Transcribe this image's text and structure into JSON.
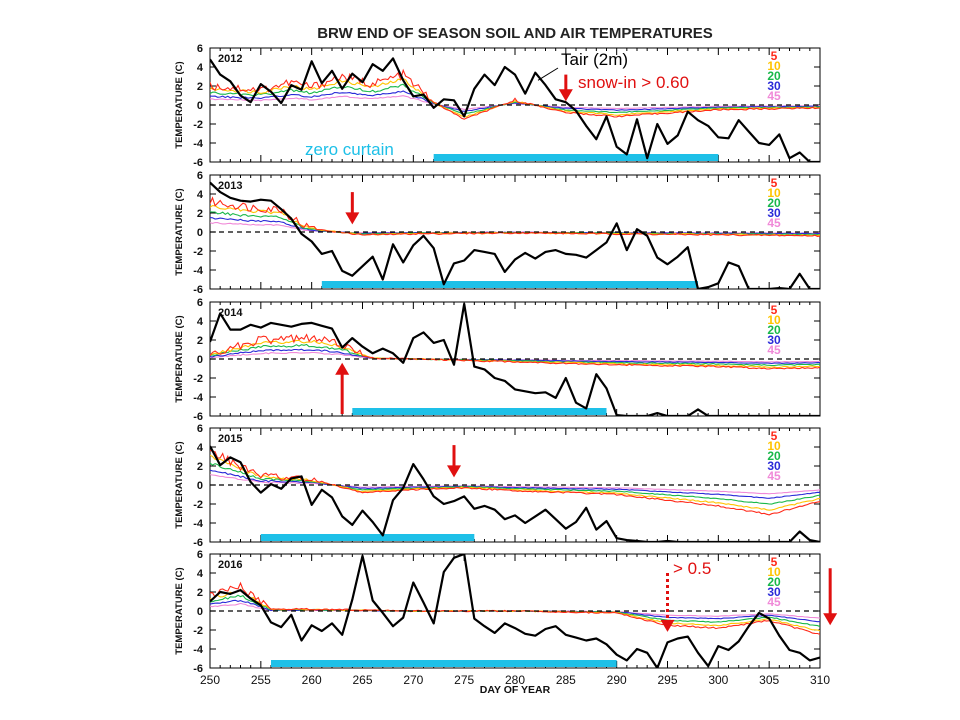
{
  "chart_data": {
    "type": "line",
    "title": "BRW END OF SEASON SOIL AND AIR TEMPERATURES",
    "xlabel": "DAY OF YEAR",
    "ylabel": "TEMPERATURE (C)",
    "xlim": [
      250,
      310
    ],
    "ylim": [
      -6,
      6
    ],
    "x_ticks": [
      250,
      255,
      260,
      265,
      270,
      275,
      280,
      285,
      290,
      295,
      300,
      305,
      310
    ],
    "y_ticks": [
      -6,
      -4,
      -2,
      0,
      2,
      4,
      6
    ],
    "grid": false,
    "legend_position": "top-right (inside each panel)",
    "depth_legend": [
      {
        "label": "5",
        "color": "#ff2a1a"
      },
      {
        "label": "10",
        "color": "#ffc400"
      },
      {
        "label": "20",
        "color": "#19b84a"
      },
      {
        "label": "30",
        "color": "#2a2ad8"
      },
      {
        "label": "45",
        "color": "#f08ad8"
      }
    ],
    "colors": {
      "air": "#000000",
      "zero_curtain": "#1ec0e8",
      "arrow": "#e01010",
      "dashed_zero": "#000000"
    },
    "annotations": {
      "tair_label": "Tair (2m)",
      "snow_in_label": "snow-in > 0.60",
      "zero_curtain_label": "zero curtain",
      "snow_in_2016_label": "> 0.5"
    },
    "panels": [
      {
        "year": "2012",
        "zero_curtain": [
          272,
          300
        ],
        "snow_in_arrows": [
          {
            "day": 285,
            "direction": "down",
            "style": "solid"
          }
        ],
        "air_temperature": {
          "x": [
            250,
            251,
            252,
            253,
            254,
            255,
            256,
            257,
            258,
            259,
            260,
            261,
            262,
            263,
            264,
            265,
            266,
            267,
            268,
            269,
            270,
            271,
            272,
            273,
            274,
            275,
            276,
            277,
            278,
            279,
            280,
            281,
            282,
            283,
            284,
            285,
            286,
            287,
            288,
            289,
            290,
            291,
            292,
            293,
            294,
            295,
            296,
            297,
            298,
            299,
            300,
            301,
            302,
            303,
            304,
            305,
            306,
            307,
            308,
            309,
            310
          ],
          "y": [
            4.8,
            3.2,
            2.5,
            1.0,
            0.3,
            2.2,
            1.4,
            0.2,
            2.1,
            1.6,
            4.6,
            2.3,
            3.6,
            1.7,
            3.3,
            2.4,
            4.3,
            3.6,
            4.9,
            2.6,
            0.9,
            1.1,
            -0.3,
            0.6,
            0.5,
            -1.2,
            1.7,
            3.2,
            2.1,
            4.0,
            3.2,
            1.2,
            3.4,
            2.1,
            0.6,
            0.3,
            -0.6,
            -2.2,
            -3.6,
            -1.2,
            -4.4,
            -5.2,
            -1.5,
            -5.6,
            -2.0,
            -4.1,
            -3.2,
            -0.7,
            -1.6,
            -2.2,
            -3.4,
            -3.5,
            -1.6,
            -2.8,
            -4.0,
            -4.2,
            -3.1,
            -5.6,
            -5.0,
            -6.0,
            -6.0
          ]
        },
        "soil_temperature_5cm": {
          "x": [
            250,
            255,
            258,
            260,
            263,
            266,
            269,
            272,
            275,
            280,
            285,
            290,
            300,
            310
          ],
          "y": [
            2.0,
            1.6,
            2.4,
            1.9,
            3.0,
            2.2,
            3.2,
            0.3,
            -1.5,
            0.5,
            -0.8,
            -1.2,
            -0.5,
            -0.3
          ]
        }
      },
      {
        "year": "2013",
        "zero_curtain": [
          261,
          298
        ],
        "snow_in_arrows": [
          {
            "day": 264,
            "direction": "down",
            "style": "solid"
          }
        ],
        "air_temperature": {
          "x": [
            250,
            251,
            252,
            253,
            254,
            255,
            256,
            257,
            258,
            259,
            260,
            261,
            262,
            263,
            264,
            265,
            266,
            267,
            268,
            269,
            270,
            271,
            272,
            273,
            274,
            275,
            276,
            277,
            278,
            279,
            280,
            281,
            282,
            283,
            284,
            285,
            286,
            287,
            288,
            289,
            290,
            291,
            292,
            293,
            294,
            295,
            296,
            297,
            298,
            299,
            300,
            301,
            302,
            303,
            304,
            305,
            306,
            307,
            308,
            309,
            310
          ],
          "y": [
            5.2,
            4.2,
            3.6,
            3.3,
            3.2,
            3.4,
            3.3,
            2.4,
            1.4,
            -0.2,
            -1.0,
            -2.3,
            -2.0,
            -4.1,
            -4.6,
            -3.6,
            -2.6,
            -5.0,
            -1.3,
            -3.2,
            -1.4,
            -0.4,
            -1.7,
            -5.5,
            -3.3,
            -3.0,
            -1.9,
            -2.1,
            -2.3,
            -4.2,
            -2.9,
            -2.2,
            -2.8,
            -2.1,
            -1.9,
            -2.3,
            -2.4,
            -2.7,
            -1.9,
            -1.1,
            0.9,
            -1.9,
            0.3,
            -0.4,
            -2.7,
            -3.4,
            -2.6,
            -1.6,
            -6.2,
            -5.8,
            -5.4,
            -3.2,
            -3.6,
            -6.0,
            -6.2,
            -6.3,
            -5.9,
            -6.1,
            -4.4,
            -6.0,
            -6.2
          ]
        },
        "soil_temperature_5cm": {
          "x": [
            250,
            254,
            257,
            259,
            261,
            265,
            270,
            280,
            290,
            300,
            310
          ],
          "y": [
            3.2,
            2.6,
            2.4,
            0.8,
            0.2,
            -0.3,
            -0.2,
            -0.1,
            -0.2,
            -0.3,
            -0.4
          ]
        }
      },
      {
        "year": "2014",
        "zero_curtain": [
          264,
          289
        ],
        "snow_in_arrows": [
          {
            "day": 263,
            "direction": "up",
            "style": "solid"
          }
        ],
        "air_temperature": {
          "x": [
            250,
            251,
            252,
            253,
            254,
            255,
            256,
            257,
            258,
            259,
            260,
            261,
            262,
            263,
            264,
            265,
            266,
            267,
            268,
            269,
            270,
            271,
            272,
            273,
            274,
            275,
            276,
            277,
            278,
            279,
            280,
            281,
            282,
            283,
            284,
            285,
            286,
            287,
            288,
            289,
            290,
            291,
            292,
            293,
            294,
            295,
            296,
            297,
            298,
            299,
            300,
            301,
            302,
            303,
            304,
            305,
            306,
            307,
            308,
            309,
            310
          ],
          "y": [
            1.8,
            4.8,
            3.1,
            3.1,
            3.6,
            3.3,
            3.8,
            3.6,
            3.4,
            3.7,
            3.8,
            3.5,
            3.2,
            1.2,
            2.2,
            1.3,
            0.6,
            1.1,
            0.6,
            -0.4,
            2.2,
            2.8,
            1.7,
            2.0,
            -0.6,
            5.8,
            -0.8,
            -1.1,
            -2.0,
            -2.3,
            -3.2,
            -3.4,
            -3.6,
            -3.5,
            -4.1,
            -2.0,
            -4.6,
            -5.2,
            -1.6,
            -3.1,
            -5.9,
            -6.2,
            -6.3,
            -6.4,
            -5.7,
            -6.2,
            -6.3,
            -6.1,
            -5.3,
            -6.3,
            -6.4,
            -6.2,
            -6.3,
            -6.1,
            -6.3,
            -6.2,
            -6.3,
            -6.4,
            -6.2,
            -6.3,
            -6.2
          ]
        },
        "soil_temperature_5cm": {
          "x": [
            250,
            255,
            260,
            263,
            266,
            270,
            280,
            290,
            300,
            305,
            310
          ],
          "y": [
            0.5,
            2.0,
            2.2,
            1.5,
            0.1,
            0.0,
            -0.3,
            -0.6,
            -0.8,
            -1.0,
            -0.9
          ]
        }
      },
      {
        "year": "2015",
        "zero_curtain": [
          255,
          276
        ],
        "snow_in_arrows": [
          {
            "day": 274,
            "direction": "down",
            "style": "solid"
          }
        ],
        "air_temperature": {
          "x": [
            250,
            251,
            252,
            253,
            254,
            255,
            256,
            257,
            258,
            259,
            260,
            261,
            262,
            263,
            264,
            265,
            266,
            267,
            268,
            269,
            270,
            271,
            272,
            273,
            274,
            275,
            276,
            277,
            278,
            279,
            280,
            281,
            282,
            283,
            284,
            285,
            286,
            287,
            288,
            289,
            290,
            291,
            292,
            293,
            294,
            295,
            296,
            297,
            298,
            299,
            300,
            301,
            302,
            303,
            304,
            305,
            306,
            307,
            308,
            309,
            310
          ],
          "y": [
            4.1,
            2.1,
            2.9,
            2.4,
            0.3,
            -0.8,
            0.1,
            -0.4,
            0.7,
            0.9,
            -2.1,
            -0.5,
            -1.3,
            -3.3,
            -4.2,
            -2.7,
            -3.9,
            -5.3,
            -1.6,
            -0.3,
            2.2,
            0.6,
            -1.2,
            -2.0,
            -1.7,
            -1.2,
            -2.5,
            -2.2,
            -2.6,
            -3.6,
            -3.2,
            -4.0,
            -3.3,
            -2.6,
            -3.6,
            -4.6,
            -3.9,
            -2.4,
            -4.7,
            -3.8,
            -5.6,
            -5.8,
            -5.9,
            -6.1,
            -6.2,
            -5.9,
            -6.1,
            -6.3,
            -6.0,
            -6.2,
            -6.0,
            -6.1,
            -6.2,
            -6.0,
            -6.1,
            -6.3,
            -6.2,
            -6.1,
            -4.9,
            -5.8,
            -6.4
          ]
        },
        "soil_temperature_5cm": {
          "x": [
            250,
            255,
            260,
            265,
            270,
            275,
            280,
            290,
            300,
            305,
            310
          ],
          "y": [
            3.5,
            1.0,
            0.6,
            -0.8,
            -0.5,
            -0.3,
            -0.6,
            -1.0,
            -2.2,
            -3.1,
            -1.7
          ]
        }
      },
      {
        "year": "2016",
        "zero_curtain": [
          256,
          290
        ],
        "snow_in_arrows": [
          {
            "day": 295,
            "direction": "down",
            "style": "dotted"
          },
          {
            "day": 311,
            "direction": "down",
            "style": "solid"
          }
        ],
        "air_temperature": {
          "x": [
            250,
            251,
            252,
            253,
            254,
            255,
            256,
            257,
            258,
            259,
            260,
            261,
            262,
            263,
            264,
            265,
            266,
            267,
            268,
            269,
            270,
            271,
            272,
            273,
            274,
            275,
            276,
            277,
            278,
            279,
            280,
            281,
            282,
            283,
            284,
            285,
            286,
            287,
            288,
            289,
            290,
            291,
            292,
            293,
            294,
            295,
            296,
            297,
            298,
            299,
            300,
            301,
            302,
            303,
            304,
            305,
            306,
            307,
            308,
            309,
            310
          ],
          "y": [
            1.0,
            2.0,
            1.8,
            2.2,
            1.3,
            0.6,
            -1.2,
            -1.7,
            -0.4,
            -3.1,
            -1.5,
            -2.1,
            -1.3,
            -2.5,
            1.2,
            5.8,
            1.1,
            -0.2,
            -1.6,
            -0.7,
            3.0,
            0.9,
            -1.3,
            4.1,
            5.6,
            6.0,
            -0.8,
            -1.6,
            -2.3,
            -1.3,
            -1.8,
            -2.4,
            -2.6,
            -1.9,
            -1.6,
            -2.5,
            -2.8,
            -3.1,
            -2.9,
            -3.5,
            -4.6,
            -5.2,
            -4.0,
            -4.4,
            -6.0,
            -3.3,
            -2.9,
            -2.7,
            -4.4,
            -5.8,
            -3.7,
            -4.1,
            -3.2,
            -1.6,
            -0.2,
            -0.8,
            -2.6,
            -4.1,
            -4.4,
            -5.2,
            -4.9
          ]
        },
        "soil_temperature_5cm": {
          "x": [
            250,
            253,
            256,
            260,
            270,
            280,
            290,
            295,
            300,
            305,
            310
          ],
          "y": [
            1.5,
            2.5,
            0.2,
            0.2,
            0.0,
            0.0,
            -0.2,
            -1.5,
            -1.8,
            -1.0,
            -2.5
          ]
        }
      }
    ]
  }
}
